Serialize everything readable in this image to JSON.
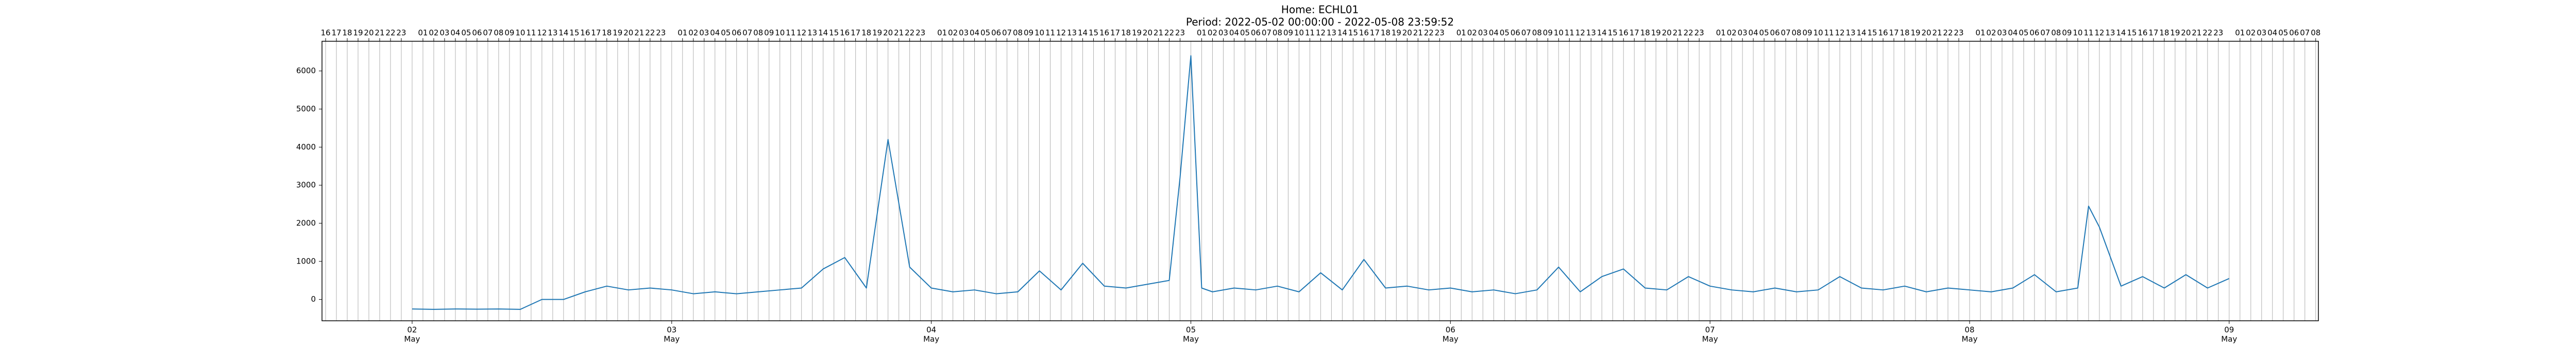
{
  "chart_data": {
    "type": "line",
    "title": "Home: ECHL01",
    "subtitle": "Period: 2022-05-02 00:00:00 - 2022-05-08 23:59:52",
    "color": "#1f77b4",
    "grid": true,
    "x": [
      "2022-05-02T00:00",
      "2022-05-02T02:00",
      "2022-05-02T04:00",
      "2022-05-02T06:00",
      "2022-05-02T08:00",
      "2022-05-02T10:00",
      "2022-05-02T12:00",
      "2022-05-02T14:00",
      "2022-05-02T16:00",
      "2022-05-02T18:00",
      "2022-05-02T20:00",
      "2022-05-02T22:00",
      "2022-05-03T00:00",
      "2022-05-03T02:00",
      "2022-05-03T04:00",
      "2022-05-03T06:00",
      "2022-05-03T08:00",
      "2022-05-03T10:00",
      "2022-05-03T12:00",
      "2022-05-03T14:00",
      "2022-05-03T16:00",
      "2022-05-03T18:00",
      "2022-05-03T20:00",
      "2022-05-03T22:00",
      "2022-05-04T00:00",
      "2022-05-04T02:00",
      "2022-05-04T04:00",
      "2022-05-04T06:00",
      "2022-05-04T08:00",
      "2022-05-04T10:00",
      "2022-05-04T12:00",
      "2022-05-04T14:00",
      "2022-05-04T16:00",
      "2022-05-04T18:00",
      "2022-05-04T20:00",
      "2022-05-04T22:00",
      "2022-05-04T23:00",
      "2022-05-05T00:00",
      "2022-05-05T01:00",
      "2022-05-05T02:00",
      "2022-05-05T04:00",
      "2022-05-05T06:00",
      "2022-05-05T08:00",
      "2022-05-05T10:00",
      "2022-05-05T12:00",
      "2022-05-05T14:00",
      "2022-05-05T16:00",
      "2022-05-05T18:00",
      "2022-05-05T20:00",
      "2022-05-05T22:00",
      "2022-05-06T00:00",
      "2022-05-06T02:00",
      "2022-05-06T04:00",
      "2022-05-06T06:00",
      "2022-05-06T08:00",
      "2022-05-06T10:00",
      "2022-05-06T12:00",
      "2022-05-06T14:00",
      "2022-05-06T16:00",
      "2022-05-06T18:00",
      "2022-05-06T20:00",
      "2022-05-06T22:00",
      "2022-05-07T00:00",
      "2022-05-07T02:00",
      "2022-05-07T04:00",
      "2022-05-07T06:00",
      "2022-05-07T08:00",
      "2022-05-07T10:00",
      "2022-05-07T12:00",
      "2022-05-07T14:00",
      "2022-05-07T16:00",
      "2022-05-07T18:00",
      "2022-05-07T20:00",
      "2022-05-07T22:00",
      "2022-05-08T00:00",
      "2022-05-08T02:00",
      "2022-05-08T04:00",
      "2022-05-08T06:00",
      "2022-05-08T08:00",
      "2022-05-08T10:00",
      "2022-05-08T11:00",
      "2022-05-08T12:00",
      "2022-05-08T14:00",
      "2022-05-08T16:00",
      "2022-05-08T18:00",
      "2022-05-08T20:00",
      "2022-05-08T22:00",
      "2022-05-09T00:00"
    ],
    "values": [
      -250,
      -260,
      -250,
      -255,
      -250,
      -260,
      0,
      0,
      200,
      350,
      250,
      300,
      250,
      150,
      200,
      150,
      200,
      250,
      300,
      800,
      1100,
      300,
      4200,
      850,
      300,
      200,
      250,
      150,
      200,
      750,
      250,
      950,
      350,
      300,
      400,
      500,
      3200,
      6400,
      300,
      200,
      300,
      250,
      350,
      200,
      700,
      250,
      1050,
      300,
      350,
      250,
      300,
      200,
      250,
      150,
      250,
      850,
      200,
      600,
      800,
      300,
      250,
      600,
      350,
      250,
      200,
      300,
      200,
      250,
      600,
      300,
      250,
      350,
      200,
      300,
      250,
      200,
      300,
      650,
      200,
      300,
      2450,
      1900,
      350,
      600,
      300,
      650,
      300,
      550
    ],
    "xlim": [
      "2022-05-01T15:40",
      "2022-05-09T08:15"
    ],
    "ylim": [
      -560,
      6780
    ],
    "yticks": [
      0,
      1000,
      2000,
      3000,
      4000,
      5000,
      6000
    ],
    "xticks": [
      {
        "value": "2022-05-02T00:00",
        "label": "02",
        "sublabel": "May"
      },
      {
        "value": "2022-05-03T00:00",
        "label": "03",
        "sublabel": "May"
      },
      {
        "value": "2022-05-04T00:00",
        "label": "04",
        "sublabel": "May"
      },
      {
        "value": "2022-05-05T00:00",
        "label": "05",
        "sublabel": "May"
      },
      {
        "value": "2022-05-06T00:00",
        "label": "06",
        "sublabel": "May"
      },
      {
        "value": "2022-05-07T00:00",
        "label": "07",
        "sublabel": "May"
      },
      {
        "value": "2022-05-08T00:00",
        "label": "08",
        "sublabel": "May"
      },
      {
        "value": "2022-05-09T00:00",
        "label": "09",
        "sublabel": "May"
      }
    ],
    "x2ticks": [
      {
        "value": "2022-05-01T16:00",
        "label": "16"
      },
      {
        "value": "2022-05-01T17:00",
        "label": "17"
      },
      {
        "value": "2022-05-01T18:00",
        "label": "18"
      },
      {
        "value": "2022-05-01T19:00",
        "label": "19"
      },
      {
        "value": "2022-05-01T20:00",
        "label": "20"
      },
      {
        "value": "2022-05-01T21:00",
        "label": "21"
      },
      {
        "value": "2022-05-01T22:00",
        "label": "22"
      },
      {
        "value": "2022-05-01T23:00",
        "label": "23"
      },
      {
        "value": "2022-05-02T01:00",
        "label": "01"
      },
      {
        "value": "2022-05-02T02:00",
        "label": "02"
      },
      {
        "value": "2022-05-02T03:00",
        "label": "03"
      },
      {
        "value": "2022-05-02T04:00",
        "label": "04"
      },
      {
        "value": "2022-05-02T05:00",
        "label": "05"
      },
      {
        "value": "2022-05-02T06:00",
        "label": "06"
      },
      {
        "value": "2022-05-02T07:00",
        "label": "07"
      },
      {
        "value": "2022-05-02T08:00",
        "label": "08"
      },
      {
        "value": "2022-05-02T09:00",
        "label": "09"
      },
      {
        "value": "2022-05-02T10:00",
        "label": "10"
      },
      {
        "value": "2022-05-02T11:00",
        "label": "11"
      },
      {
        "value": "2022-05-02T12:00",
        "label": "12"
      },
      {
        "value": "2022-05-02T13:00",
        "label": "13"
      },
      {
        "value": "2022-05-02T14:00",
        "label": "14"
      },
      {
        "value": "2022-05-02T15:00",
        "label": "15"
      },
      {
        "value": "2022-05-02T16:00",
        "label": "16"
      },
      {
        "value": "2022-05-02T17:00",
        "label": "17"
      },
      {
        "value": "2022-05-02T18:00",
        "label": "18"
      },
      {
        "value": "2022-05-02T19:00",
        "label": "19"
      },
      {
        "value": "2022-05-02T20:00",
        "label": "20"
      },
      {
        "value": "2022-05-02T21:00",
        "label": "21"
      },
      {
        "value": "2022-05-02T22:00",
        "label": "22"
      },
      {
        "value": "2022-05-02T23:00",
        "label": "23"
      },
      {
        "value": "2022-05-03T01:00",
        "label": "01"
      },
      {
        "value": "2022-05-03T02:00",
        "label": "02"
      },
      {
        "value": "2022-05-03T03:00",
        "label": "03"
      },
      {
        "value": "2022-05-03T04:00",
        "label": "04"
      },
      {
        "value": "2022-05-03T05:00",
        "label": "05"
      },
      {
        "value": "2022-05-03T06:00",
        "label": "06"
      },
      {
        "value": "2022-05-03T07:00",
        "label": "07"
      },
      {
        "value": "2022-05-03T08:00",
        "label": "08"
      },
      {
        "value": "2022-05-03T09:00",
        "label": "09"
      },
      {
        "value": "2022-05-03T10:00",
        "label": "10"
      },
      {
        "value": "2022-05-03T11:00",
        "label": "11"
      },
      {
        "value": "2022-05-03T12:00",
        "label": "12"
      },
      {
        "value": "2022-05-03T13:00",
        "label": "13"
      },
      {
        "value": "2022-05-03T14:00",
        "label": "14"
      },
      {
        "value": "2022-05-03T15:00",
        "label": "15"
      },
      {
        "value": "2022-05-03T16:00",
        "label": "16"
      },
      {
        "value": "2022-05-03T17:00",
        "label": "17"
      },
      {
        "value": "2022-05-03T18:00",
        "label": "18"
      },
      {
        "value": "2022-05-03T19:00",
        "label": "19"
      },
      {
        "value": "2022-05-03T20:00",
        "label": "20"
      },
      {
        "value": "2022-05-03T21:00",
        "label": "21"
      },
      {
        "value": "2022-05-03T22:00",
        "label": "22"
      },
      {
        "value": "2022-05-03T23:00",
        "label": "23"
      },
      {
        "value": "2022-05-04T01:00",
        "label": "01"
      },
      {
        "value": "2022-05-04T02:00",
        "label": "02"
      },
      {
        "value": "2022-05-04T03:00",
        "label": "03"
      },
      {
        "value": "2022-05-04T04:00",
        "label": "04"
      },
      {
        "value": "2022-05-04T05:00",
        "label": "05"
      },
      {
        "value": "2022-05-04T06:00",
        "label": "06"
      },
      {
        "value": "2022-05-04T07:00",
        "label": "07"
      },
      {
        "value": "2022-05-04T08:00",
        "label": "08"
      },
      {
        "value": "2022-05-04T09:00",
        "label": "09"
      },
      {
        "value": "2022-05-04T10:00",
        "label": "10"
      },
      {
        "value": "2022-05-04T11:00",
        "label": "11"
      },
      {
        "value": "2022-05-04T12:00",
        "label": "12"
      },
      {
        "value": "2022-05-04T13:00",
        "label": "13"
      },
      {
        "value": "2022-05-04T14:00",
        "label": "14"
      },
      {
        "value": "2022-05-04T15:00",
        "label": "15"
      },
      {
        "value": "2022-05-04T16:00",
        "label": "16"
      },
      {
        "value": "2022-05-04T17:00",
        "label": "17"
      },
      {
        "value": "2022-05-04T18:00",
        "label": "18"
      },
      {
        "value": "2022-05-04T19:00",
        "label": "19"
      },
      {
        "value": "2022-05-04T20:00",
        "label": "20"
      },
      {
        "value": "2022-05-04T21:00",
        "label": "21"
      },
      {
        "value": "2022-05-04T22:00",
        "label": "22"
      },
      {
        "value": "2022-05-04T23:00",
        "label": "23"
      },
      {
        "value": "2022-05-05T01:00",
        "label": "01"
      },
      {
        "value": "2022-05-05T02:00",
        "label": "02"
      },
      {
        "value": "2022-05-05T03:00",
        "label": "03"
      },
      {
        "value": "2022-05-05T04:00",
        "label": "04"
      },
      {
        "value": "2022-05-05T05:00",
        "label": "05"
      },
      {
        "value": "2022-05-05T06:00",
        "label": "06"
      },
      {
        "value": "2022-05-05T07:00",
        "label": "07"
      },
      {
        "value": "2022-05-05T08:00",
        "label": "08"
      },
      {
        "value": "2022-05-05T09:00",
        "label": "09"
      },
      {
        "value": "2022-05-05T10:00",
        "label": "10"
      },
      {
        "value": "2022-05-05T11:00",
        "label": "11"
      },
      {
        "value": "2022-05-05T12:00",
        "label": "12"
      },
      {
        "value": "2022-05-05T13:00",
        "label": "13"
      },
      {
        "value": "2022-05-05T14:00",
        "label": "14"
      },
      {
        "value": "2022-05-05T15:00",
        "label": "15"
      },
      {
        "value": "2022-05-05T16:00",
        "label": "16"
      },
      {
        "value": "2022-05-05T17:00",
        "label": "17"
      },
      {
        "value": "2022-05-05T18:00",
        "label": "18"
      },
      {
        "value": "2022-05-05T19:00",
        "label": "19"
      },
      {
        "value": "2022-05-05T20:00",
        "label": "20"
      },
      {
        "value": "2022-05-05T21:00",
        "label": "21"
      },
      {
        "value": "2022-05-05T22:00",
        "label": "22"
      },
      {
        "value": "2022-05-05T23:00",
        "label": "23"
      },
      {
        "value": "2022-05-06T01:00",
        "label": "01"
      },
      {
        "value": "2022-05-06T02:00",
        "label": "02"
      },
      {
        "value": "2022-05-06T03:00",
        "label": "03"
      },
      {
        "value": "2022-05-06T04:00",
        "label": "04"
      },
      {
        "value": "2022-05-06T05:00",
        "label": "05"
      },
      {
        "value": "2022-05-06T06:00",
        "label": "06"
      },
      {
        "value": "2022-05-06T07:00",
        "label": "07"
      },
      {
        "value": "2022-05-06T08:00",
        "label": "08"
      },
      {
        "value": "2022-05-06T09:00",
        "label": "09"
      },
      {
        "value": "2022-05-06T10:00",
        "label": "10"
      },
      {
        "value": "2022-05-06T11:00",
        "label": "11"
      },
      {
        "value": "2022-05-06T12:00",
        "label": "12"
      },
      {
        "value": "2022-05-06T13:00",
        "label": "13"
      },
      {
        "value": "2022-05-06T14:00",
        "label": "14"
      },
      {
        "value": "2022-05-06T15:00",
        "label": "15"
      },
      {
        "value": "2022-05-06T16:00",
        "label": "16"
      },
      {
        "value": "2022-05-06T17:00",
        "label": "17"
      },
      {
        "value": "2022-05-06T18:00",
        "label": "18"
      },
      {
        "value": "2022-05-06T19:00",
        "label": "19"
      },
      {
        "value": "2022-05-06T20:00",
        "label": "20"
      },
      {
        "value": "2022-05-06T21:00",
        "label": "21"
      },
      {
        "value": "2022-05-06T22:00",
        "label": "22"
      },
      {
        "value": "2022-05-06T23:00",
        "label": "23"
      },
      {
        "value": "2022-05-07T01:00",
        "label": "01"
      },
      {
        "value": "2022-05-07T02:00",
        "label": "02"
      },
      {
        "value": "2022-05-07T03:00",
        "label": "03"
      },
      {
        "value": "2022-05-07T04:00",
        "label": "04"
      },
      {
        "value": "2022-05-07T05:00",
        "label": "05"
      },
      {
        "value": "2022-05-07T06:00",
        "label": "06"
      },
      {
        "value": "2022-05-07T07:00",
        "label": "07"
      },
      {
        "value": "2022-05-07T08:00",
        "label": "08"
      },
      {
        "value": "2022-05-07T09:00",
        "label": "09"
      },
      {
        "value": "2022-05-07T10:00",
        "label": "10"
      },
      {
        "value": "2022-05-07T11:00",
        "label": "11"
      },
      {
        "value": "2022-05-07T12:00",
        "label": "12"
      },
      {
        "value": "2022-05-07T13:00",
        "label": "13"
      },
      {
        "value": "2022-05-07T14:00",
        "label": "14"
      },
      {
        "value": "2022-05-07T15:00",
        "label": "15"
      },
      {
        "value": "2022-05-07T16:00",
        "label": "16"
      },
      {
        "value": "2022-05-07T17:00",
        "label": "17"
      },
      {
        "value": "2022-05-07T18:00",
        "label": "18"
      },
      {
        "value": "2022-05-07T19:00",
        "label": "19"
      },
      {
        "value": "2022-05-07T20:00",
        "label": "20"
      },
      {
        "value": "2022-05-07T21:00",
        "label": "21"
      },
      {
        "value": "2022-05-07T22:00",
        "label": "22"
      },
      {
        "value": "2022-05-07T23:00",
        "label": "23"
      },
      {
        "value": "2022-05-08T01:00",
        "label": "01"
      },
      {
        "value": "2022-05-08T02:00",
        "label": "02"
      },
      {
        "value": "2022-05-08T03:00",
        "label": "03"
      },
      {
        "value": "2022-05-08T04:00",
        "label": "04"
      },
      {
        "value": "2022-05-08T05:00",
        "label": "05"
      },
      {
        "value": "2022-05-08T06:00",
        "label": "06"
      },
      {
        "value": "2022-05-08T07:00",
        "label": "07"
      },
      {
        "value": "2022-05-08T08:00",
        "label": "08"
      },
      {
        "value": "2022-05-08T09:00",
        "label": "09"
      },
      {
        "value": "2022-05-08T10:00",
        "label": "10"
      },
      {
        "value": "2022-05-08T11:00",
        "label": "11"
      },
      {
        "value": "2022-05-08T12:00",
        "label": "12"
      },
      {
        "value": "2022-05-08T13:00",
        "label": "13"
      },
      {
        "value": "2022-05-08T14:00",
        "label": "14"
      },
      {
        "value": "2022-05-08T15:00",
        "label": "15"
      },
      {
        "value": "2022-05-08T16:00",
        "label": "16"
      },
      {
        "value": "2022-05-08T17:00",
        "label": "17"
      },
      {
        "value": "2022-05-08T18:00",
        "label": "18"
      },
      {
        "value": "2022-05-08T19:00",
        "label": "19"
      },
      {
        "value": "2022-05-08T20:00",
        "label": "20"
      },
      {
        "value": "2022-05-08T21:00",
        "label": "21"
      },
      {
        "value": "2022-05-08T22:00",
        "label": "22"
      },
      {
        "value": "2022-05-08T23:00",
        "label": "23"
      },
      {
        "value": "2022-05-09T01:00",
        "label": "01"
      },
      {
        "value": "2022-05-09T02:00",
        "label": "02"
      },
      {
        "value": "2022-05-09T03:00",
        "label": "03"
      },
      {
        "value": "2022-05-09T04:00",
        "label": "04"
      },
      {
        "value": "2022-05-09T05:00",
        "label": "05"
      },
      {
        "value": "2022-05-09T06:00",
        "label": "06"
      },
      {
        "value": "2022-05-09T07:00",
        "label": "07"
      },
      {
        "value": "2022-05-09T08:00",
        "label": "08"
      }
    ]
  }
}
